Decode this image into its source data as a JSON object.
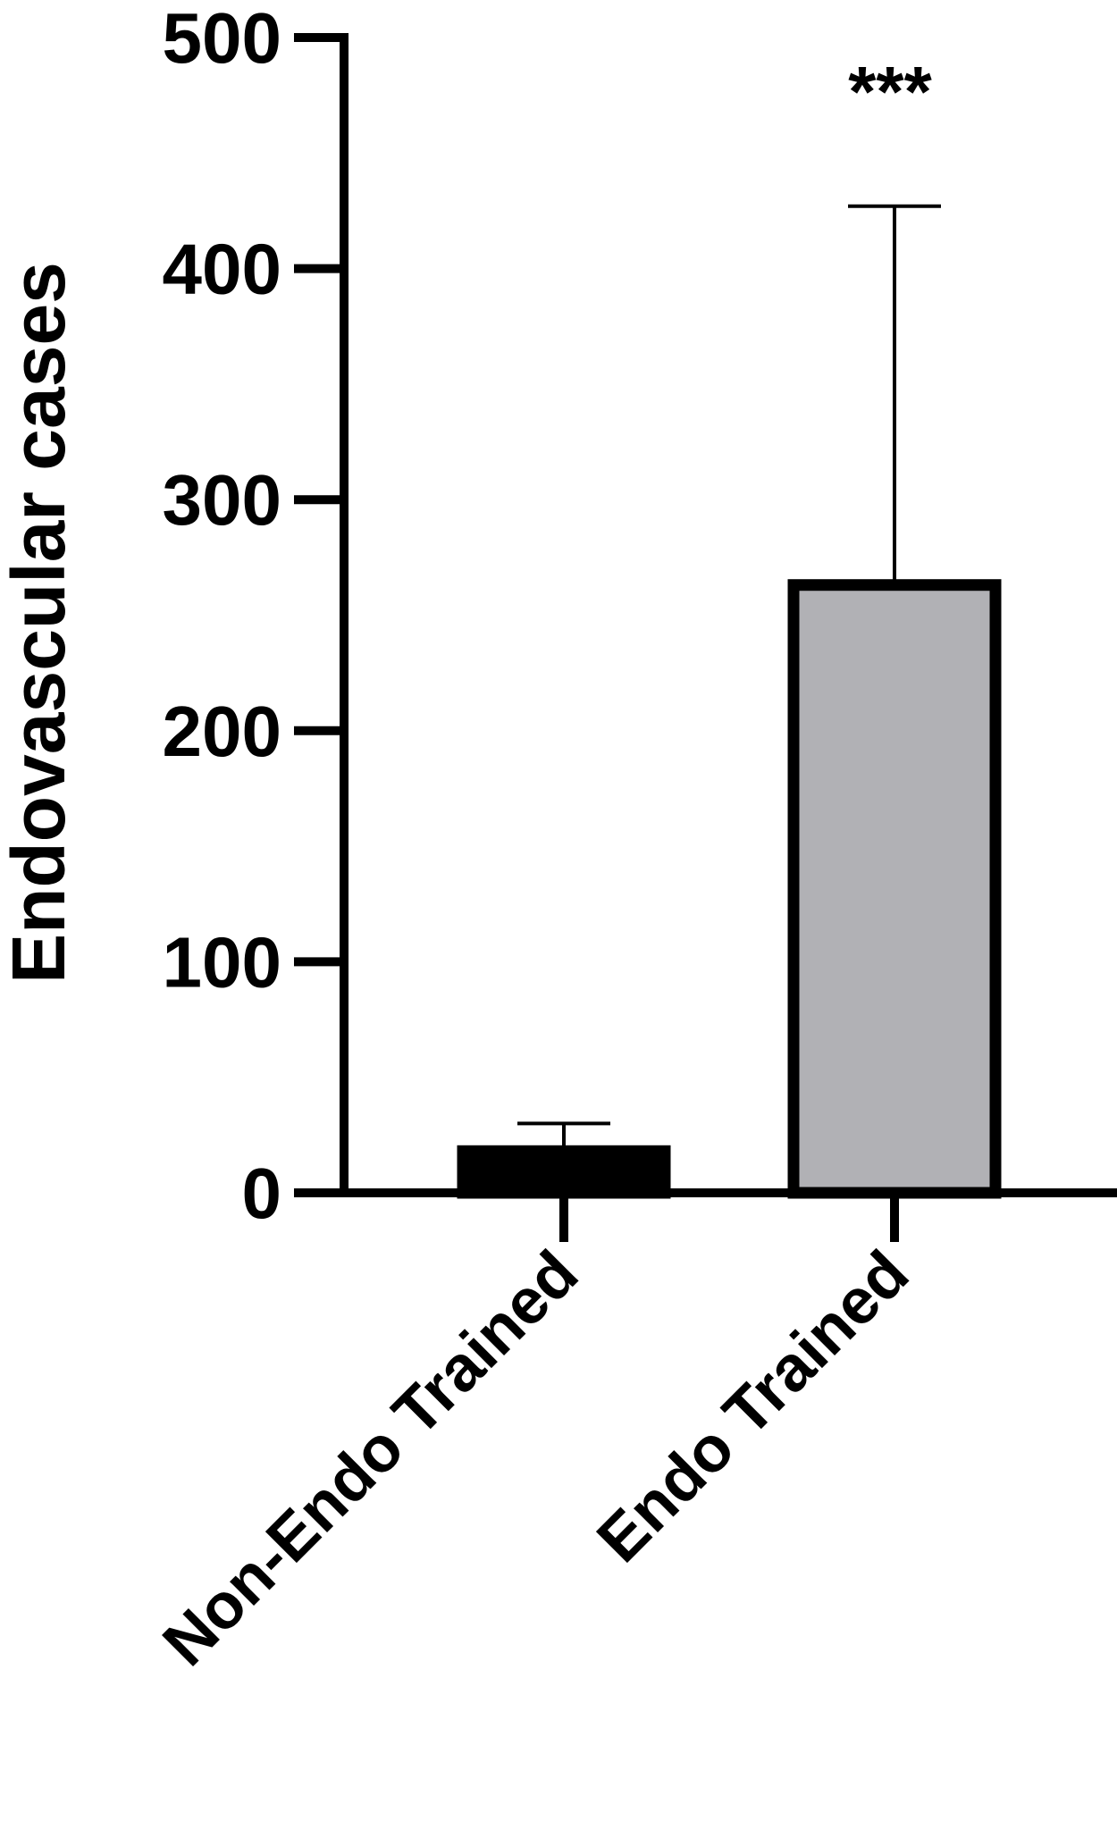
{
  "chart_data": {
    "type": "bar",
    "y_label": "Endovascular cases",
    "categories": [
      "Non-Endo Trained",
      "Endo Trained"
    ],
    "series": [
      {
        "values": [
          20,
          265
        ],
        "errors": [
          10,
          162
        ],
        "colors": [
          "#000000",
          "#b1b1b5"
        ]
      }
    ],
    "annotations": [
      {
        "text": "***",
        "category": 1
      }
    ],
    "ylim": [
      0,
      500
    ],
    "yticks": [
      0,
      100,
      200,
      300,
      400,
      500
    ],
    "grid": false
  }
}
